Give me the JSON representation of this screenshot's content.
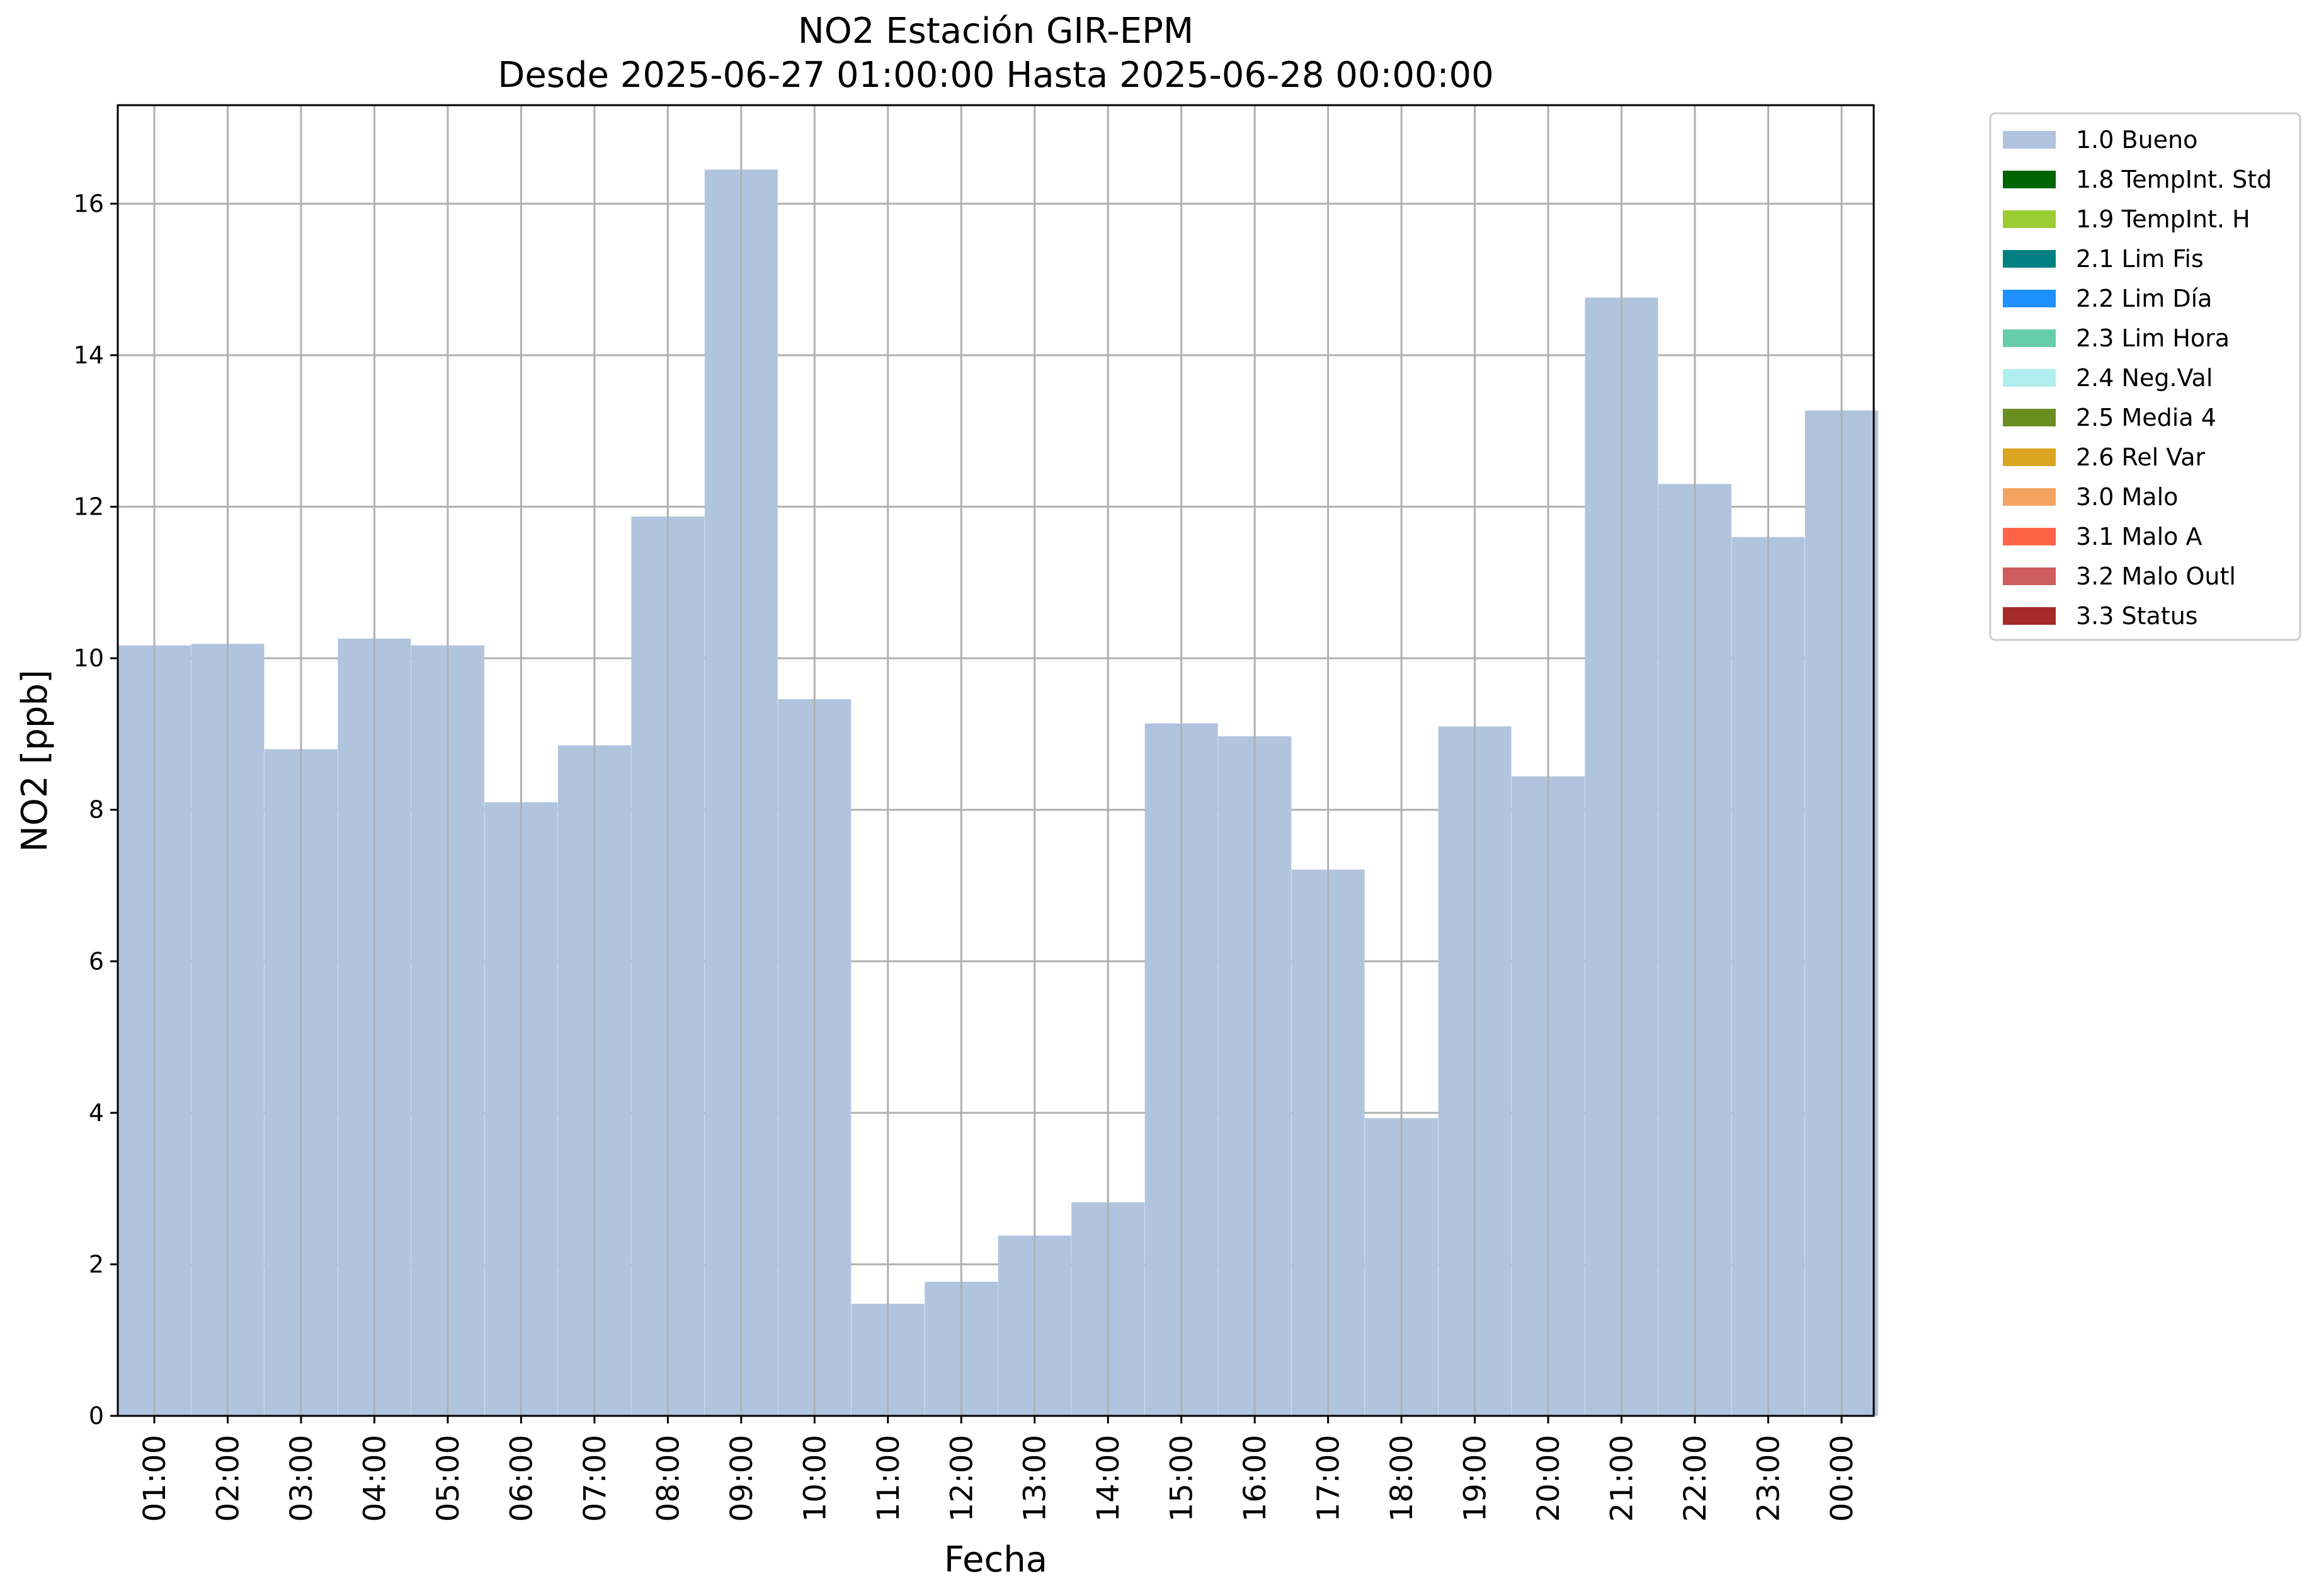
{
  "chart_data": {
    "type": "bar",
    "title": "NO2 Estación GIR-EPM",
    "subtitle": "Desde 2025-06-27 01:00:00 Hasta 2025-06-28 00:00:00",
    "xlabel": "Fecha",
    "ylabel": "NO2 [ppb]",
    "ylim": [
      0,
      17.3
    ],
    "yticks": [
      0,
      2,
      4,
      6,
      8,
      10,
      12,
      14,
      16
    ],
    "grid": true,
    "legend_position": "outside-top-right",
    "categories": [
      "01:00",
      "02:00",
      "03:00",
      "04:00",
      "05:00",
      "06:00",
      "07:00",
      "08:00",
      "09:00",
      "10:00",
      "11:00",
      "12:00",
      "13:00",
      "14:00",
      "15:00",
      "16:00",
      "17:00",
      "18:00",
      "19:00",
      "20:00",
      "21:00",
      "22:00",
      "23:00",
      "00:00"
    ],
    "series": [
      {
        "name": "1.0 Bueno",
        "color": "#b0c4de",
        "values": [
          10.17,
          10.19,
          8.8,
          10.26,
          10.17,
          8.1,
          8.85,
          11.87,
          16.45,
          9.46,
          1.48,
          1.77,
          2.38,
          2.82,
          9.14,
          8.97,
          7.21,
          3.93,
          9.1,
          8.44,
          14.76,
          12.3,
          11.6,
          13.27
        ]
      }
    ],
    "legend": [
      {
        "label": "1.0 Bueno",
        "color": "#b0c4de"
      },
      {
        "label": "1.8 TempInt. Std",
        "color": "#006400"
      },
      {
        "label": "1.9 TempInt. H",
        "color": "#9acd32"
      },
      {
        "label": "2.1 Lim Fis",
        "color": "#008080"
      },
      {
        "label": "2.2 Lim Día",
        "color": "#1e90ff"
      },
      {
        "label": "2.3 Lim Hora",
        "color": "#66cdaa"
      },
      {
        "label": "2.4 Neg.Val",
        "color": "#afeeee"
      },
      {
        "label": "2.5 Media 4",
        "color": "#6b8e23"
      },
      {
        "label": "2.6 Rel Var",
        "color": "#daa520"
      },
      {
        "label": "3.0 Malo",
        "color": "#f4a460"
      },
      {
        "label": "3.1 Malo A",
        "color": "#ff6347"
      },
      {
        "label": "3.2 Malo Outl",
        "color": "#cd5c5c"
      },
      {
        "label": "3.3 Status",
        "color": "#a52a2a"
      }
    ]
  }
}
